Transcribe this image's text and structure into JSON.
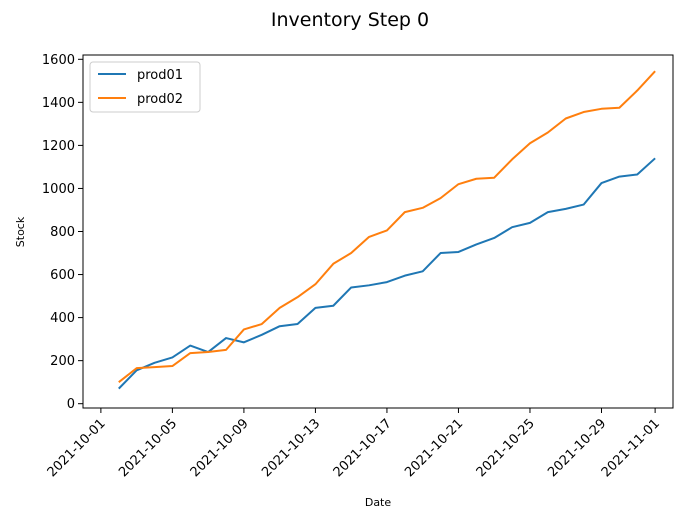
{
  "chart_data": {
    "type": "line",
    "title": "Inventory Step 0",
    "xlabel": "Date",
    "ylabel": "Stock",
    "x_type": "date",
    "x_start": "2021-10-02",
    "x_ticks": [
      "2021-10-01",
      "2021-10-05",
      "2021-10-09",
      "2021-10-13",
      "2021-10-17",
      "2021-10-21",
      "2021-10-25",
      "2021-10-29",
      "2021-11-01"
    ],
    "xlim": [
      "2021-09-30",
      "2021-11-02"
    ],
    "ylim": [
      -20,
      1620
    ],
    "y_ticks": [
      0,
      200,
      400,
      600,
      800,
      1000,
      1200,
      1400,
      1600
    ],
    "grid": false,
    "legend_position": "top-left",
    "colors": {
      "prod01": "#1f77b4",
      "prod02": "#ff7f0e"
    },
    "series": [
      {
        "name": "prod01",
        "color": "#1f77b4",
        "values": [
          70,
          155,
          190,
          215,
          270,
          240,
          305,
          285,
          320,
          360,
          370,
          445,
          455,
          540,
          550,
          565,
          595,
          615,
          700,
          705,
          740,
          770,
          820,
          840,
          890,
          905,
          925,
          1025,
          1055,
          1065,
          1140
        ]
      },
      {
        "name": "prod02",
        "color": "#ff7f0e",
        "values": [
          100,
          165,
          170,
          175,
          235,
          240,
          250,
          345,
          370,
          445,
          495,
          555,
          650,
          700,
          775,
          805,
          890,
          910,
          955,
          1020,
          1045,
          1050,
          1135,
          1210,
          1260,
          1325,
          1355,
          1370,
          1375,
          1455,
          1545
        ]
      }
    ]
  }
}
